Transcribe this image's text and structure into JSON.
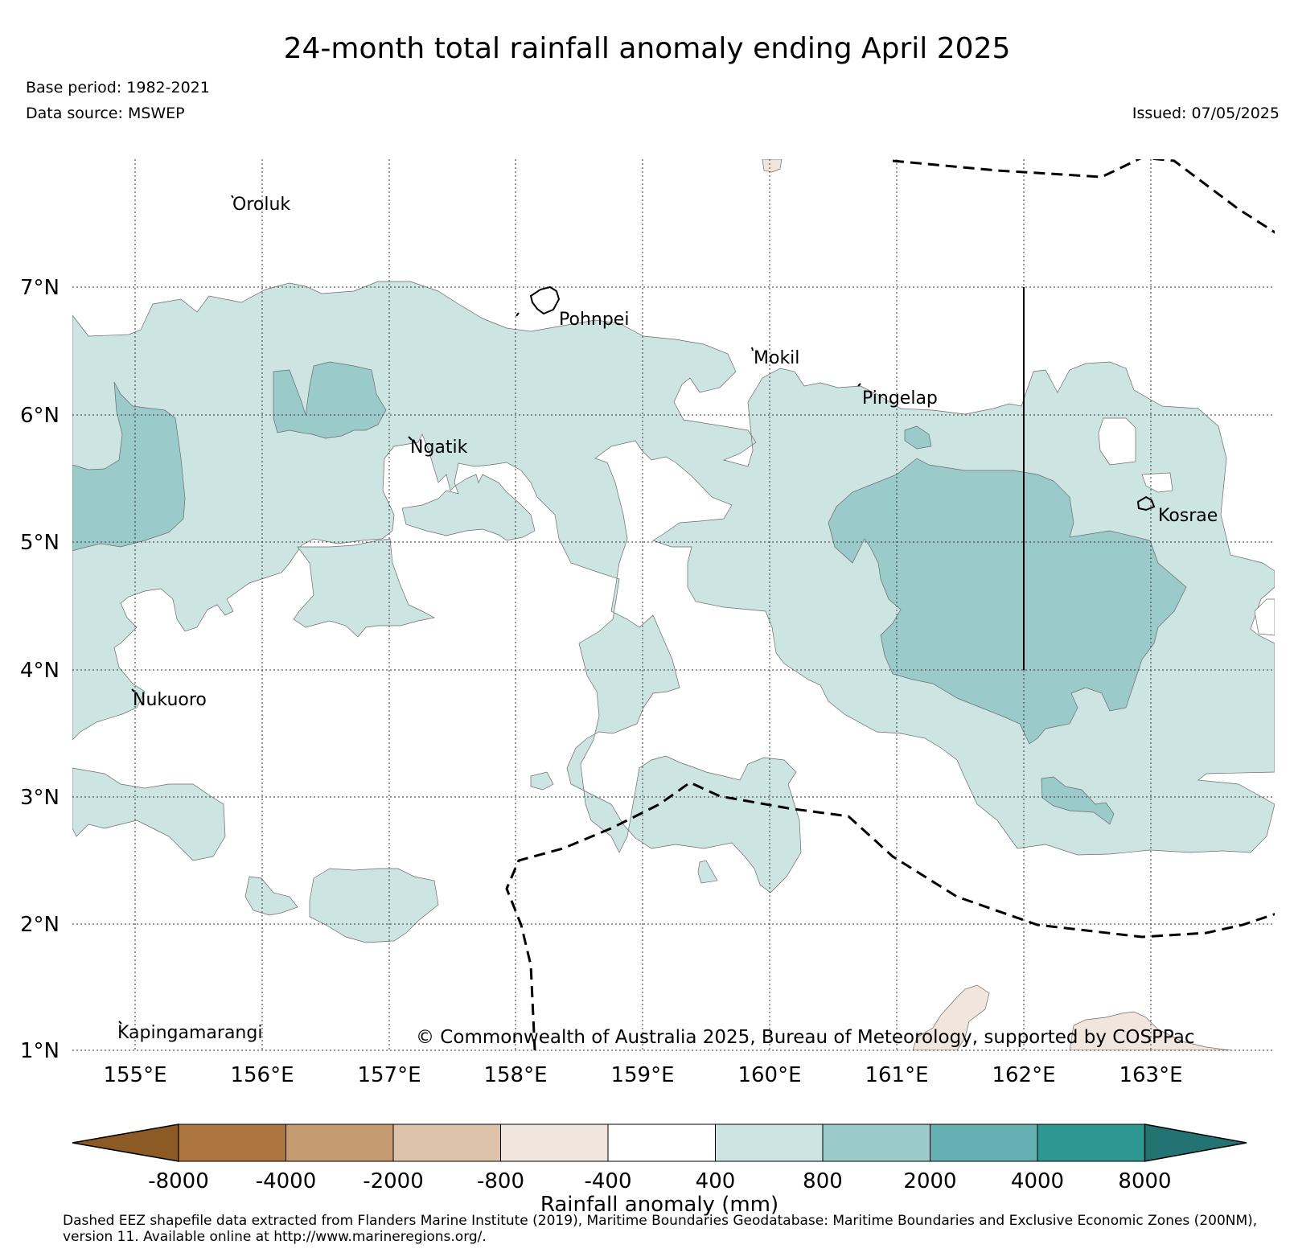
{
  "header": {
    "title": "24-month total rainfall anomaly ending April 2025",
    "base_period": "Base period: 1982-2021",
    "data_source": "Data source: MSWEP",
    "issued": "Issued: 07/05/2025"
  },
  "map": {
    "lat_labels": [
      "7°N",
      "6°N",
      "5°N",
      "4°N",
      "3°N",
      "2°N",
      "1°N"
    ],
    "lon_labels": [
      "155°E",
      "156°E",
      "157°E",
      "158°E",
      "159°E",
      "160°E",
      "161°E",
      "162°E",
      "163°E"
    ],
    "extent": {
      "lon_min": 154.5,
      "lon_max": 164.0,
      "lat_min": 1.0,
      "lat_max": 8.0
    },
    "gridlines": true,
    "places": [
      {
        "name": "Oroluk",
        "lon": 155.75,
        "lat": 7.7
      },
      {
        "name": "Pohnpei",
        "lon": 158.3,
        "lat": 6.85
      },
      {
        "name": "Mokil",
        "lon": 159.85,
        "lat": 6.55
      },
      {
        "name": "Pingelap",
        "lon": 160.7,
        "lat": 6.2
      },
      {
        "name": "Ngatik",
        "lon": 157.15,
        "lat": 5.8
      },
      {
        "name": "Kosrae",
        "lon": 163.0,
        "lat": 5.3
      },
      {
        "name": "Nukuoro",
        "lon": 154.85,
        "lat": 3.85
      },
      {
        "name": "Kapingamarangi",
        "lon": 154.8,
        "lat": 1.1
      }
    ],
    "copyright": "© Commonwealth of Australia 2025, Bureau of Meteorology, supported by COSPPac"
  },
  "colorbar": {
    "title": "Rainfall anomaly (mm)",
    "ticks": [
      "-8000",
      "-4000",
      "-2000",
      "-800",
      "-400",
      "400",
      "800",
      "2000",
      "4000",
      "8000"
    ],
    "colors": [
      "#8c5a25",
      "#ad7540",
      "#c49a70",
      "#dcc3aa",
      "#f1e6dd",
      "#ffffff",
      "#cce5e3",
      "#9bcacb",
      "#64b0b0",
      "#2e9791",
      "#227371"
    ]
  },
  "footnote": "Dashed EEZ shapefile data extracted from Flanders Marine Institute (2019), Maritime Boundaries Geodatabase: Maritime Boundaries and Exclusive Economic Zones (200NM), version 11. Available online at http://www.marineregions.org/."
}
